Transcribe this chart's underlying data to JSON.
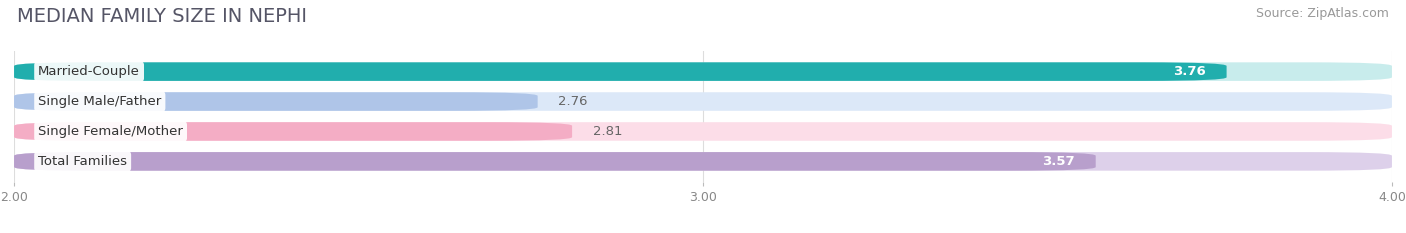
{
  "title": "MEDIAN FAMILY SIZE IN NEPHI",
  "source": "Source: ZipAtlas.com",
  "categories": [
    "Married-Couple",
    "Single Male/Father",
    "Single Female/Mother",
    "Total Families"
  ],
  "values": [
    3.76,
    2.76,
    2.81,
    3.57
  ],
  "bar_colors": [
    "#21aead",
    "#afc5e8",
    "#f4adc5",
    "#b89fcc"
  ],
  "bar_bg_colors": [
    "#c8ecec",
    "#dce8f8",
    "#fcdde8",
    "#ddd0ea"
  ],
  "label_colors": [
    "#ffffff",
    "#555555",
    "#555555",
    "#ffffff"
  ],
  "value_inside": [
    true,
    false,
    false,
    true
  ],
  "xmin": 2.0,
  "xmax": 4.0,
  "xticks": [
    2.0,
    3.0,
    4.0
  ],
  "xtick_labels": [
    "2.00",
    "3.00",
    "4.00"
  ],
  "background_color": "#ffffff",
  "title_fontsize": 14,
  "source_fontsize": 9,
  "label_fontsize": 9.5,
  "value_fontsize": 9.5
}
